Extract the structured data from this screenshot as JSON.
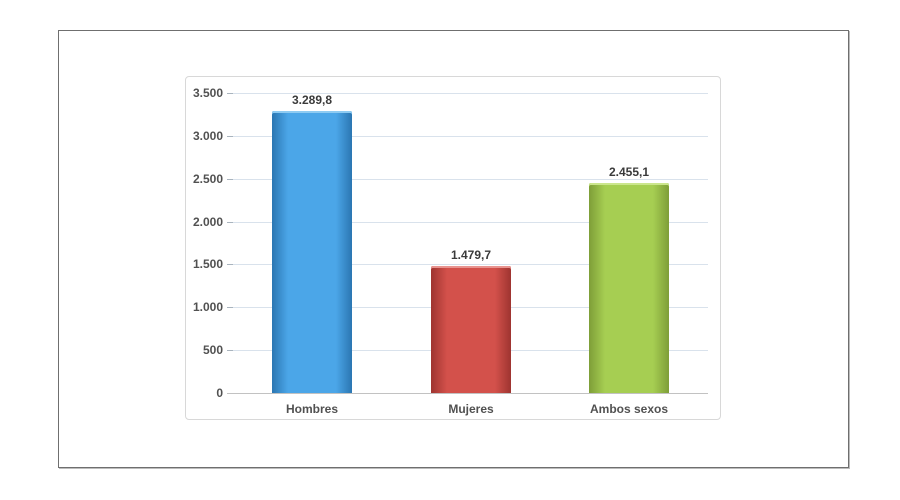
{
  "page": {
    "background": "#ffffff",
    "outer_border_color": "#6f6f6f",
    "outer_shadow_color": "#bcbcbc"
  },
  "chart_data": {
    "type": "bar",
    "title": "",
    "xlabel": "",
    "ylabel": "",
    "categories": [
      "Hombres",
      "Mujeres",
      "Ambos sexos"
    ],
    "values": [
      3289.8,
      1479.7,
      2455.1
    ],
    "value_labels": [
      "3.289,8",
      "1.479,7",
      "2.455,1"
    ],
    "bar_colors": [
      {
        "center": "#4BA6E8",
        "edge": "#2B76B2",
        "bevel": "#8ECBF2"
      },
      {
        "center": "#D3514B",
        "edge": "#9E3430",
        "bevel": "#E89490"
      },
      {
        "center": "#A6CE52",
        "edge": "#7E9E38",
        "bevel": "#CBE68C"
      }
    ],
    "ylim": [
      0,
      3500
    ],
    "ytick_step": 500,
    "ytick_labels": [
      "0",
      "500",
      "1.000",
      "1.500",
      "2.000",
      "2.500",
      "3.000",
      "3.500"
    ],
    "grid": true,
    "legend": false,
    "colors": {
      "gridline": "#D9E2EC",
      "axis_line": "#C2C2C2",
      "tick": "#A9B4BE",
      "data_label": "#3A3A3A",
      "axis_label": "#515151",
      "chart_border": "#D8D8D8"
    }
  }
}
